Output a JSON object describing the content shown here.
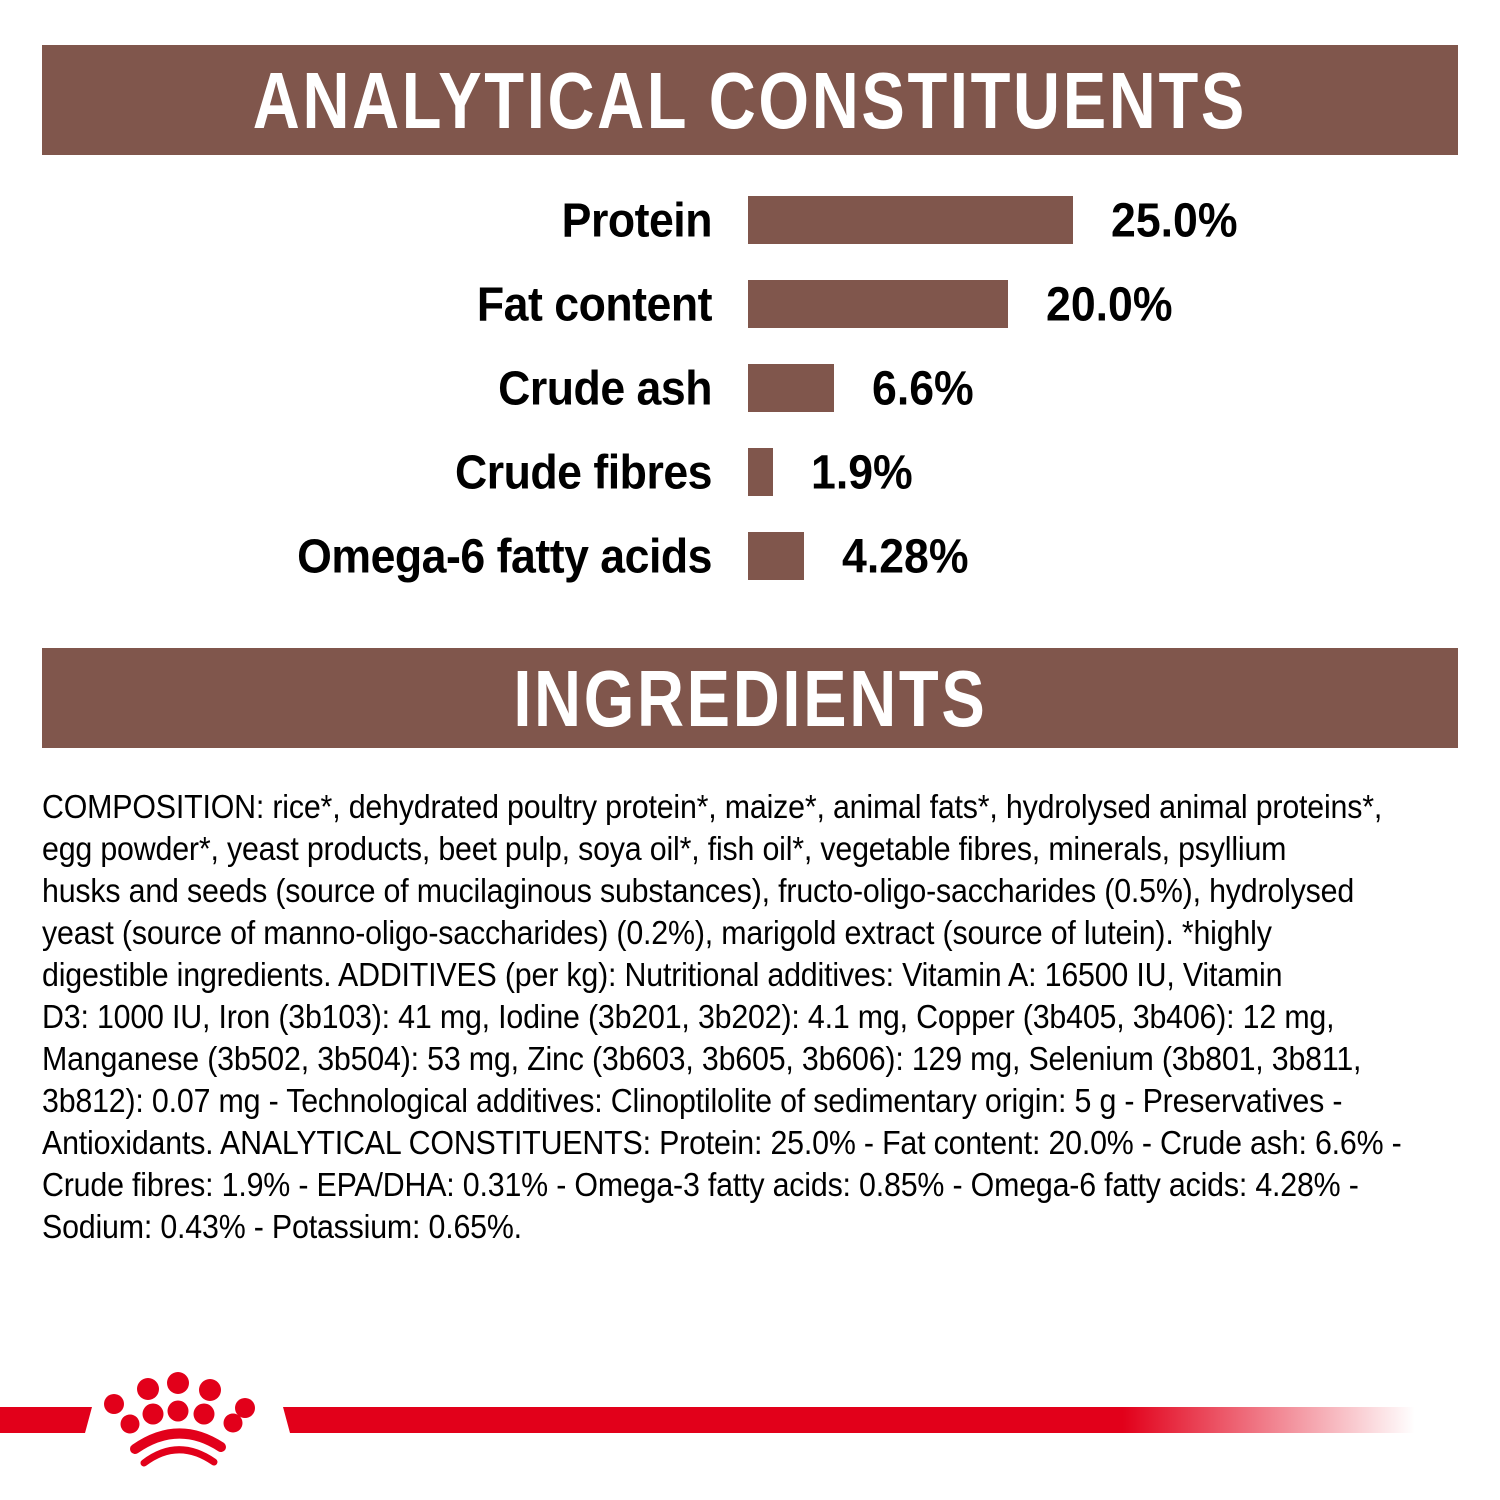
{
  "sections": {
    "analytical": {
      "title": "ANALYTICAL CONSTITUENTS"
    },
    "ingredients": {
      "title": "INGREDIENTS"
    }
  },
  "chart_data": {
    "type": "bar",
    "orientation": "horizontal",
    "categories": [
      "Protein",
      "Fat content",
      "Crude ash",
      "Crude fibres",
      "Omega-6 fatty acids"
    ],
    "values": [
      25.0,
      20.0,
      6.6,
      1.9,
      4.28
    ],
    "value_labels": [
      "25.0%",
      "20.0%",
      "6.6%",
      "1.9%",
      "4.28%"
    ],
    "unit": "%",
    "xlim": [
      0,
      25
    ],
    "bar_color": "#80564C",
    "grid": "off",
    "legend": "none",
    "title": "ANALYTICAL CONSTITUENTS"
  },
  "composition": {
    "lines": [
      "COMPOSITION: rice*, dehydrated poultry protein*, maize*, animal fats*, hydrolysed animal proteins*,",
      "egg powder*, yeast products, beet pulp, soya oil*, fish oil*, vegetable fibres, minerals, psyllium",
      "husks and seeds (source of mucilaginous substances), fructo-oligo-saccharides (0.5%), hydrolysed",
      "yeast (source of manno-oligo-saccharides) (0.2%), marigold extract (source of lutein). *highly",
      "digestible ingredients. ADDITIVES (per kg): Nutritional additives: Vitamin A: 16500 IU, Vitamin",
      "D3: 1000 IU, Iron (3b103): 41 mg, Iodine (3b201, 3b202): 4.1 mg, Copper (3b405, 3b406): 12 mg,",
      "Manganese (3b502, 3b504): 53 mg, Zinc (3b603, 3b605, 3b606): 129 mg, Selenium (3b801, 3b811,",
      "3b812): 0.07 mg - Technological additives: Clinoptilolite of sedimentary origin: 5 g - Preservatives -",
      "Antioxidants. ANALYTICAL CONSTITUENTS: Protein: 25.0% - Fat content: 20.0% - Crude ash: 6.6% -",
      "Crude fibres: 1.9% - EPA/DHA: 0.31% - Omega-3 fatty acids: 0.85% - Omega-6 fatty acids: 4.28% -",
      "Sodium: 0.43% - Potassium: 0.65%."
    ]
  },
  "colors": {
    "brown": "#80564C",
    "red": "#E2001A",
    "text": "#000000",
    "background": "#FFFFFF"
  },
  "footer": {
    "logo": "royal-canin-crown"
  }
}
